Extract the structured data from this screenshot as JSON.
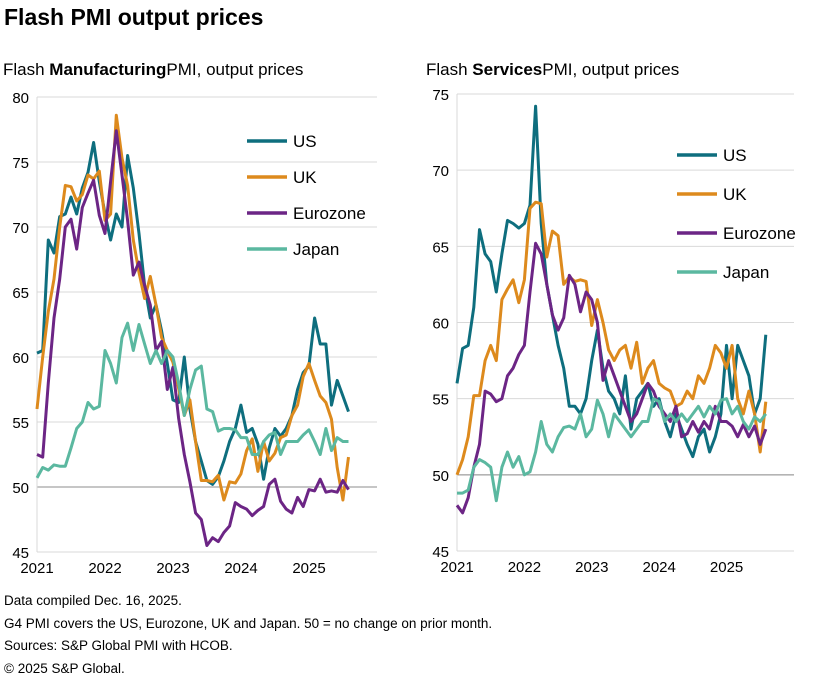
{
  "title": "Flash PMI output prices",
  "charts": [
    {
      "prefix": "Flash ",
      "bold": "Manufacturing",
      "suffix": "PMI, output prices"
    },
    {
      "prefix": "Flash ",
      "bold": "Services",
      "suffix": "PMI, output prices"
    }
  ],
  "footnotes": [
    "Data compiled Dec. 16, 2025.",
    "G4 PMI covers the US, Eurozone, UK and Japan. 50 = no change on prior month.",
    "Sources: S&P Global PMI with HCOB.",
    "© 2025 S&P Global."
  ],
  "chart_data": [
    {
      "type": "line",
      "title": "Flash Manufacturing PMI, output prices",
      "x_ticks": [
        "2021",
        "2022",
        "2023",
        "2024",
        "2025"
      ],
      "x_range": [
        2021.0,
        2026.0
      ],
      "ylim": [
        45,
        80
      ],
      "y_ticks": [
        45,
        50,
        55,
        60,
        65,
        70,
        75,
        80
      ],
      "reference_line": 50,
      "grid": true,
      "legend_position": "top-right",
      "series": [
        {
          "name": "US",
          "color": "#0e6e7e",
          "start": 2021.0,
          "step": 0.0833,
          "values": [
            60.3,
            60.5,
            69,
            68,
            70.8,
            71,
            72.3,
            71,
            73,
            74.2,
            76.5,
            73.5,
            71,
            69,
            71,
            70,
            75.5,
            73,
            69.5,
            65.5,
            63,
            64,
            62,
            59.5,
            56.7,
            56.5,
            60,
            56,
            53.5,
            52,
            50.5,
            50.2,
            50.8,
            52,
            53.5,
            54.5,
            56.3,
            54.2,
            54.5,
            53.3,
            50.6,
            53,
            54.5,
            53.9,
            54.5,
            55.5,
            57.5,
            58.8,
            59.3,
            63,
            61,
            61,
            56.3,
            58.2,
            57,
            55.8
          ]
        },
        {
          "name": "UK",
          "color": "#dd8a1d",
          "start": 2021.0,
          "step": 0.0833,
          "values": [
            56,
            60,
            63.5,
            66,
            70,
            73.2,
            73.1,
            72,
            72.5,
            74,
            73.7,
            74.3,
            70.5,
            71,
            78.6,
            75.3,
            73.2,
            69,
            66.5,
            64.5,
            66.2,
            64,
            61.5,
            60.5,
            59.6,
            57.6,
            55.5,
            56.7,
            53.5,
            50.5,
            50.5,
            50.4,
            50.9,
            49,
            50.4,
            50.3,
            51,
            52.8,
            53.7,
            51.2,
            53.5,
            52,
            52.6,
            53.8,
            54,
            55.5,
            56.3,
            58.5,
            59.5,
            58.2,
            57,
            56.5,
            55.2,
            51.5,
            49,
            52.3
          ]
        },
        {
          "name": "Eurozone",
          "color": "#6c2585",
          "start": 2021.0,
          "step": 0.0833,
          "values": [
            52.5,
            52.3,
            58,
            63,
            66,
            70,
            70.6,
            68.3,
            71.5,
            72.6,
            73.6,
            70.9,
            69.5,
            73.5,
            77.4,
            74,
            70.5,
            66.3,
            67.3,
            65.5,
            64,
            60.5,
            61.2,
            57.5,
            59.2,
            55.3,
            52.5,
            50.4,
            48,
            47.5,
            45.5,
            46.1,
            45.8,
            46.5,
            47,
            48.8,
            48.5,
            48.3,
            47.8,
            48.2,
            48.5,
            50.2,
            50.6,
            48.9,
            48.3,
            48,
            49.2,
            48.5,
            49.8,
            49.7,
            50.6,
            49.6,
            49.7,
            49.6,
            50.5,
            49.8
          ]
        },
        {
          "name": "Japan",
          "color": "#5bb8a0",
          "start": 2021.0,
          "step": 0.0833,
          "values": [
            50.7,
            51.5,
            51.3,
            51.7,
            51.6,
            51.6,
            53,
            54.5,
            55,
            56.5,
            56,
            56.2,
            60.5,
            59.5,
            58,
            61.5,
            62.6,
            60.5,
            62.5,
            61,
            59.5,
            60.5,
            59.5,
            60.5,
            60,
            58,
            55.5,
            57.5,
            59,
            59.3,
            56,
            55.8,
            54.3,
            54.5,
            54.5,
            54.4,
            53.8,
            53.8,
            52.5,
            52.5,
            53.5,
            54,
            54.2,
            52.5,
            53.5,
            53.5,
            53.5,
            54,
            54.4,
            53.5,
            52.5,
            54.5,
            52.8,
            53.8,
            53.5,
            53.5
          ]
        }
      ]
    },
    {
      "type": "line",
      "title": "Flash Services PMI, output prices",
      "x_ticks": [
        "2021",
        "2022",
        "2023",
        "2024",
        "2025"
      ],
      "x_range": [
        2021.0,
        2026.0
      ],
      "ylim": [
        45,
        75
      ],
      "y_ticks": [
        45,
        50,
        55,
        60,
        65,
        70,
        75
      ],
      "reference_line": 50,
      "grid": true,
      "legend_position": "top-right",
      "series": [
        {
          "name": "US",
          "color": "#0e6e7e",
          "start": 2021.0,
          "step": 0.0833,
          "values": [
            56,
            58.3,
            58.5,
            61,
            66.1,
            64.5,
            64,
            62,
            64.5,
            66.7,
            66.5,
            66.2,
            66.5,
            67.7,
            74.2,
            66.5,
            62.5,
            60.5,
            58.5,
            57,
            54.5,
            54.5,
            54,
            55,
            57.5,
            59.5,
            57,
            55.5,
            55,
            54,
            56.5,
            53,
            55,
            55.5,
            56,
            54.5,
            55,
            53.5,
            52.5,
            54,
            53,
            52,
            51.2,
            52.5,
            53,
            51.5,
            52.5,
            54,
            58.5,
            55,
            58.5,
            57.5,
            56.5,
            54,
            55,
            59.2
          ]
        },
        {
          "name": "UK",
          "color": "#dd8a1d",
          "start": 2021.0,
          "step": 0.0833,
          "values": [
            50,
            51,
            52.5,
            55.2,
            55.2,
            57.5,
            58.5,
            57.5,
            61.5,
            62.2,
            62.8,
            61.3,
            62.8,
            67.5,
            67.9,
            67.8,
            64.3,
            66,
            65.7,
            62.5,
            63,
            62.7,
            62.8,
            62.7,
            59.8,
            61.5,
            60,
            58.2,
            57.5,
            58.2,
            58.5,
            57,
            58.7,
            56,
            57,
            57.5,
            56,
            55.7,
            55.5,
            54.5,
            54.7,
            55.5,
            55,
            56.5,
            56,
            57,
            58.5,
            58,
            57,
            58.5,
            55,
            54,
            55.5,
            54,
            51.5,
            54.8
          ]
        },
        {
          "name": "Eurozone",
          "color": "#6c2585",
          "start": 2021.0,
          "step": 0.0833,
          "values": [
            48,
            47.5,
            48.5,
            50.5,
            52,
            55.5,
            55.3,
            54.8,
            55,
            56.5,
            57,
            57.9,
            58.5,
            62,
            65.2,
            64.5,
            62.5,
            60.5,
            59.5,
            60.3,
            63.1,
            62.5,
            60.7,
            62,
            61.5,
            60,
            56.2,
            57.5,
            56.5,
            55.5,
            54.5,
            53.5,
            54,
            55,
            56,
            55.5,
            54.5,
            54,
            53.5,
            54.5,
            52.5,
            52.7,
            53.5,
            52.8,
            53.5,
            53,
            54.5,
            53.5,
            53.5,
            53.2,
            52.5,
            53.3,
            52.5,
            53.2,
            52,
            53
          ]
        },
        {
          "name": "Japan",
          "color": "#5bb8a0",
          "start": 2021.0,
          "step": 0.0833,
          "values": [
            48.8,
            48.8,
            49,
            50.5,
            51,
            50.8,
            50.5,
            48.3,
            50.5,
            51.5,
            50.5,
            51.2,
            50,
            50.2,
            51.5,
            53.5,
            52,
            51.5,
            52.5,
            53.1,
            53.2,
            53,
            54,
            52.5,
            53,
            54.9,
            54,
            52.5,
            54,
            53.5,
            53,
            52.5,
            53,
            53.5,
            53.5,
            55,
            54.8,
            53.5,
            54,
            53.5,
            54,
            53.5,
            54,
            54.5,
            53.8,
            54.5,
            54,
            54.9,
            55,
            54,
            54.5,
            53.5,
            53,
            53.8,
            53.5,
            54
          ]
        }
      ]
    }
  ]
}
